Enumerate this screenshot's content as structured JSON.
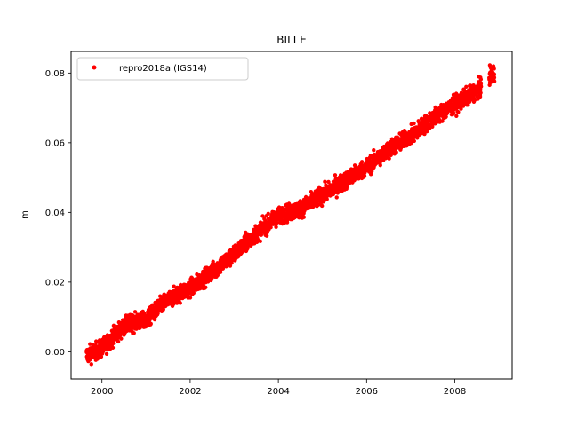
{
  "chart_data": {
    "type": "scatter",
    "title": "BILI E",
    "xlabel": "",
    "ylabel": "m",
    "xlim": [
      1999.3,
      2009.3
    ],
    "ylim": [
      -0.0078,
      0.0862
    ],
    "xticks": [
      2000,
      2002,
      2004,
      2006,
      2008
    ],
    "xtick_labels": [
      "2000",
      "2002",
      "2004",
      "2006",
      "2008"
    ],
    "yticks": [
      0.0,
      0.02,
      0.04,
      0.06,
      0.08
    ],
    "ytick_labels": [
      "0.00",
      "0.02",
      "0.04",
      "0.06",
      "0.08"
    ],
    "grid": false,
    "legend_position": "top-left",
    "series": [
      {
        "name": "repro2018a (IGS14)",
        "color": "#ff0000",
        "marker": "circle",
        "trend_points": {
          "x": [
            1999.65,
            2000.0,
            2000.3,
            2000.6,
            2001.0,
            2001.4,
            2001.8,
            2002.1,
            2002.5,
            2003.0,
            2003.5,
            2004.0,
            2004.5,
            2005.0,
            2005.5,
            2006.0,
            2006.5,
            2007.0,
            2007.5,
            2008.0,
            2008.5,
            2008.9
          ],
          "y": [
            -0.001,
            0.001,
            0.005,
            0.008,
            0.009,
            0.014,
            0.017,
            0.019,
            0.023,
            0.028,
            0.034,
            0.039,
            0.041,
            0.045,
            0.049,
            0.053,
            0.058,
            0.062,
            0.067,
            0.071,
            0.075,
            0.08
          ]
        },
        "noise_amplitude": 0.0012
      }
    ]
  }
}
